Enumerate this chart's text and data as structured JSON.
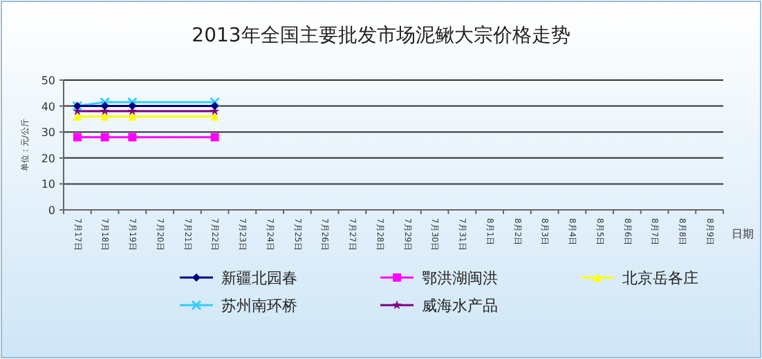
{
  "chart_data": {
    "type": "line",
    "title": "2013年全国主要批发市场泥鳅大宗价格走势",
    "xlabel": "日期",
    "ylabel": "单位：元/公斤",
    "categories": [
      "7月17日",
      "7月18日",
      "7月19日",
      "7月20日",
      "7月21日",
      "7月22日",
      "7月23日",
      "7月24日",
      "7月25日",
      "7月26日",
      "7月27日",
      "7月28日",
      "7月29日",
      "7月30日",
      "7月31日",
      "8月1日",
      "8月2日",
      "8月3日",
      "8月4日",
      "8月5日",
      "8月6日",
      "8月7日",
      "8月8日",
      "8月9日"
    ],
    "series": [
      {
        "name": "新疆北园春",
        "color": "#000080",
        "marker": "diamond",
        "values": [
          40,
          40,
          40,
          null,
          null,
          40,
          null,
          null,
          null,
          null,
          null,
          null,
          null,
          null,
          null,
          null,
          null,
          null,
          null,
          null,
          null,
          null,
          null,
          null
        ]
      },
      {
        "name": "鄂洪湖闽洪",
        "color": "#ff00ff",
        "marker": "square",
        "values": [
          28,
          28,
          28,
          null,
          null,
          28,
          null,
          null,
          null,
          null,
          null,
          null,
          null,
          null,
          null,
          null,
          null,
          null,
          null,
          null,
          null,
          null,
          null,
          null
        ]
      },
      {
        "name": "北京岳各庄",
        "color": "#ffff00",
        "marker": "triangle",
        "values": [
          36,
          36,
          36,
          null,
          null,
          36,
          null,
          null,
          null,
          null,
          null,
          null,
          null,
          null,
          null,
          null,
          null,
          null,
          null,
          null,
          null,
          null,
          null,
          null
        ]
      },
      {
        "name": "苏州南环桥",
        "color": "#33ccff",
        "marker": "cross",
        "values": [
          40,
          41.5,
          41.5,
          null,
          null,
          41.5,
          null,
          null,
          null,
          null,
          null,
          null,
          null,
          null,
          null,
          null,
          null,
          null,
          null,
          null,
          null,
          null,
          null,
          null
        ]
      },
      {
        "name": "威海水产品",
        "color": "#800080",
        "marker": "star",
        "values": [
          38,
          38,
          38,
          null,
          null,
          38,
          null,
          null,
          null,
          null,
          null,
          null,
          null,
          null,
          null,
          null,
          null,
          null,
          null,
          null,
          null,
          null,
          null,
          null
        ]
      }
    ],
    "ylim": [
      0,
      50
    ],
    "yticks": [
      0,
      10,
      20,
      30,
      40,
      50
    ],
    "grid": "y",
    "legend": "bottom"
  }
}
